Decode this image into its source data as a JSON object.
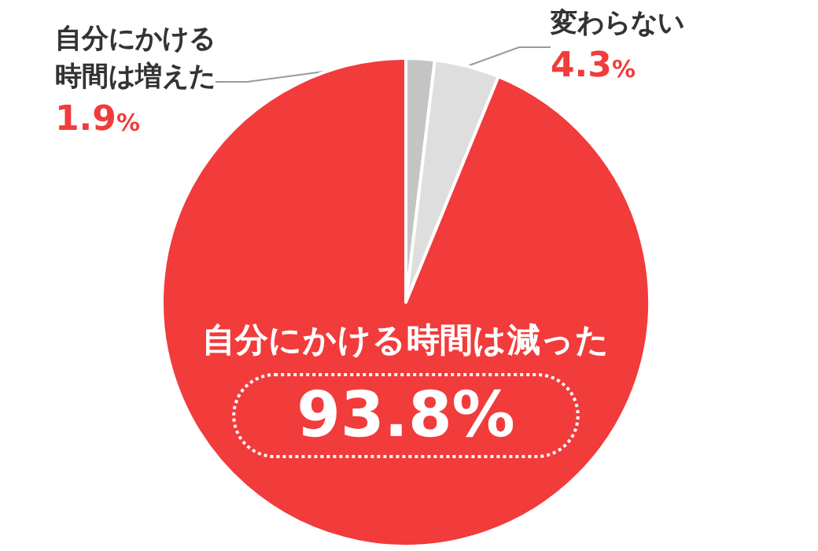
{
  "chart_data": {
    "type": "pie",
    "categories": [
      "自分にかける時間は増えた",
      "変わらない",
      "自分にかける時間は減った"
    ],
    "values": [
      1.9,
      4.3,
      93.8
    ],
    "colors": [
      "#c4c4c4",
      "#dedede",
      "#f23b3b"
    ],
    "value_labels": [
      "1.9%",
      "4.3%",
      "93.8%"
    ],
    "legend": false
  }
}
